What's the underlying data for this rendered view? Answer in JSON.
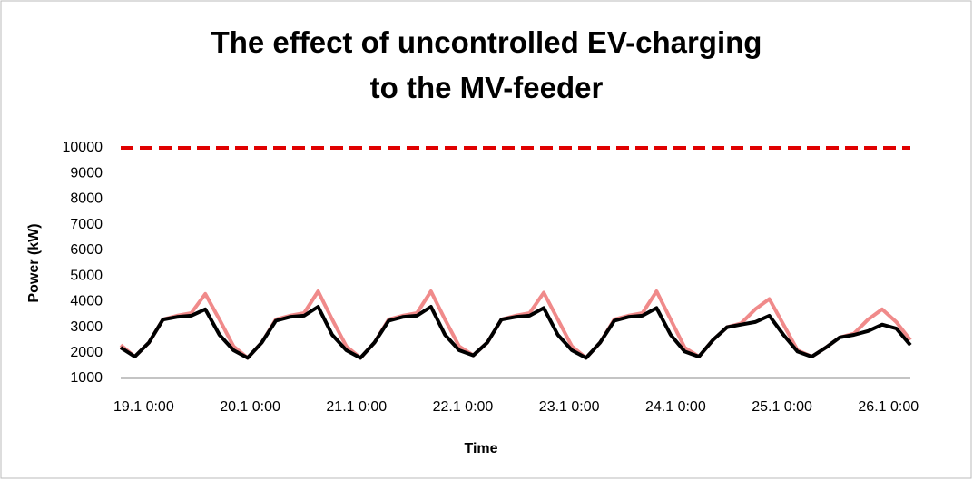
{
  "chart_data": {
    "type": "line",
    "title": "The effect of  uncontrolled EV-charging to the MV-feeder",
    "xlabel": "Time",
    "ylabel": "Power (kW)",
    "x": [
      "19.1 0:00",
      "19.1 3:00",
      "19.1 6:00",
      "19.1 9:00",
      "19.1 12:00",
      "19.1 15:00",
      "19.1 18:00",
      "19.1 21:00",
      "20.1 0:00",
      "20.1 3:00",
      "20.1 6:00",
      "20.1 9:00",
      "20.1 12:00",
      "20.1 15:00",
      "20.1 18:00",
      "20.1 21:00",
      "21.1 0:00",
      "21.1 3:00",
      "21.1 6:00",
      "21.1 9:00",
      "21.1 12:00",
      "21.1 15:00",
      "21.1 18:00",
      "21.1 21:00",
      "22.1 0:00",
      "22.1 3:00",
      "22.1 6:00",
      "22.1 9:00",
      "22.1 12:00",
      "22.1 15:00",
      "22.1 18:00",
      "22.1 21:00",
      "23.1 0:00",
      "23.1 3:00",
      "23.1 6:00",
      "23.1 9:00",
      "23.1 12:00",
      "23.1 15:00",
      "23.1 18:00",
      "23.1 21:00",
      "24.1 0:00",
      "24.1 3:00",
      "24.1 6:00",
      "24.1 9:00",
      "24.1 12:00",
      "24.1 15:00",
      "24.1 18:00",
      "24.1 21:00",
      "25.1 0:00",
      "25.1 3:00",
      "25.1 6:00",
      "25.1 9:00",
      "25.1 12:00",
      "25.1 15:00",
      "25.1 18:00",
      "25.1 21:00",
      "26.1 0:00"
    ],
    "series": [
      {
        "color": "#e00000",
        "dashed": true,
        "values": [
          10000,
          10000,
          10000,
          10000,
          10000,
          10000,
          10000,
          10000,
          10000,
          10000,
          10000,
          10000,
          10000,
          10000,
          10000,
          10000,
          10000,
          10000,
          10000,
          10000,
          10000,
          10000,
          10000,
          10000,
          10000,
          10000,
          10000,
          10000,
          10000,
          10000,
          10000,
          10000,
          10000,
          10000,
          10000,
          10000,
          10000,
          10000,
          10000,
          10000,
          10000,
          10000,
          10000,
          10000,
          10000,
          10000,
          10000,
          10000,
          10000,
          10000,
          10000,
          10000,
          10000,
          10000,
          10000,
          10000,
          10000
        ]
      },
      {
        "color": "#f08a8a",
        "values": [
          2300,
          1850,
          2400,
          3300,
          3450,
          3550,
          4300,
          3300,
          2250,
          1800,
          2400,
          3300,
          3450,
          3550,
          4400,
          3300,
          2250,
          1800,
          2400,
          3300,
          3450,
          3550,
          4400,
          3300,
          2250,
          1900,
          2400,
          3300,
          3450,
          3550,
          4350,
          3300,
          2250,
          1800,
          2400,
          3300,
          3450,
          3550,
          4400,
          3300,
          2200,
          1850,
          2500,
          3000,
          3150,
          3700,
          4100,
          3100,
          2100,
          1850,
          2200,
          2600,
          2750,
          3300,
          3700,
          3200,
          2500
        ]
      },
      {
        "color": "#000000",
        "values": [
          2200,
          1850,
          2400,
          3300,
          3400,
          3450,
          3700,
          2700,
          2100,
          1800,
          2400,
          3250,
          3400,
          3450,
          3800,
          2700,
          2100,
          1800,
          2400,
          3250,
          3400,
          3450,
          3800,
          2700,
          2100,
          1900,
          2400,
          3300,
          3400,
          3450,
          3750,
          2700,
          2100,
          1800,
          2400,
          3250,
          3400,
          3450,
          3750,
          2700,
          2050,
          1850,
          2500,
          3000,
          3100,
          3200,
          3450,
          2700,
          2050,
          1850,
          2200,
          2600,
          2700,
          2850,
          3100,
          2950,
          2300
        ]
      }
    ],
    "xticks": [
      "19.1 0:00",
      "20.1 0:00",
      "21.1 0:00",
      "22.1 0:00",
      "23.1 0:00",
      "24.1 0:00",
      "25.1 0:00",
      "26.1 0:00"
    ],
    "ylim": [
      1000,
      10000
    ],
    "yticks": [
      1000,
      2000,
      3000,
      4000,
      5000,
      6000,
      7000,
      8000,
      9000,
      10000
    ]
  }
}
